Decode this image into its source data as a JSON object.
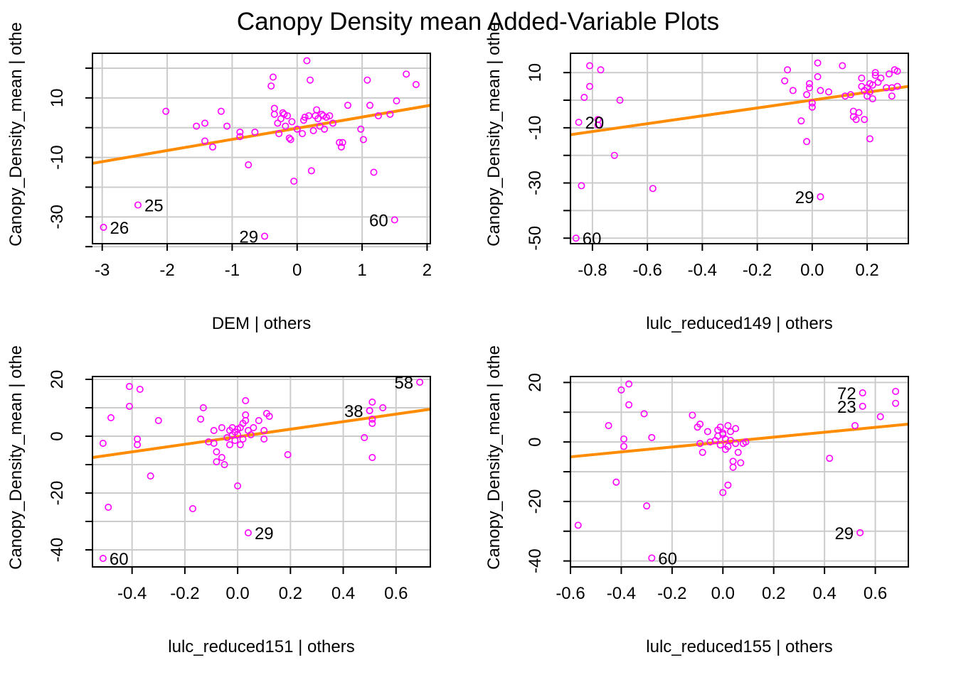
{
  "title": "Canopy Density mean Added-Variable Plots",
  "colors": {
    "points": "#ff00ff",
    "fit_line": "#ff8c00",
    "grid": "#cccccc",
    "axis": "#000000",
    "background": "#ffffff"
  },
  "chart_data": [
    {
      "type": "scatter",
      "xlabel": "DEM | others",
      "ylabel": "Canopy_Density_mean  | othe",
      "xticks": [
        -3,
        -2,
        -1,
        0,
        1,
        2
      ],
      "yticks": [
        -30,
        -10,
        10
      ],
      "yminor": [
        -40,
        -20,
        0,
        20
      ],
      "xlim": [
        -3.15,
        2.05
      ],
      "ylim": [
        -39,
        25
      ],
      "grid": true,
      "fit_line": [
        [
          -3.15,
          -12
        ],
        [
          2.05,
          7.5
        ]
      ],
      "labeled_points": [
        {
          "label": "25",
          "x": -2.45,
          "y": -26
        },
        {
          "label": "26",
          "x": -2.98,
          "y": -33.5
        },
        {
          "label": "29",
          "x": -0.5,
          "y": -36.5
        },
        {
          "label": "60",
          "x": 1.5,
          "y": -31
        }
      ],
      "points": [
        [
          -2.02,
          5.5
        ],
        [
          -1.55,
          0.5
        ],
        [
          -1.42,
          1.5
        ],
        [
          -1.42,
          -4.5
        ],
        [
          -1.3,
          -6.5
        ],
        [
          -1.17,
          5.5
        ],
        [
          -1.08,
          0.5
        ],
        [
          -0.88,
          -1.5
        ],
        [
          -0.88,
          -3
        ],
        [
          -0.75,
          -12.5
        ],
        [
          -0.65,
          -1.5
        ],
        [
          -0.4,
          14
        ],
        [
          -0.37,
          17
        ],
        [
          -0.35,
          6.5
        ],
        [
          -0.35,
          4.5
        ],
        [
          -0.3,
          1.5
        ],
        [
          -0.28,
          -2
        ],
        [
          -0.25,
          3
        ],
        [
          -0.22,
          5
        ],
        [
          -0.2,
          4.5
        ],
        [
          -0.18,
          0.5
        ],
        [
          -0.15,
          4
        ],
        [
          -0.12,
          -3.5
        ],
        [
          -0.1,
          -4
        ],
        [
          -0.08,
          2
        ],
        [
          -0.05,
          -18
        ],
        [
          0,
          -0.5
        ],
        [
          0.08,
          -2
        ],
        [
          0.1,
          2.5
        ],
        [
          0.12,
          3.5
        ],
        [
          0.15,
          22.5
        ],
        [
          0.18,
          4
        ],
        [
          0.2,
          16
        ],
        [
          0.22,
          -14.5
        ],
        [
          0.25,
          -1
        ],
        [
          0.28,
          4
        ],
        [
          0.3,
          6
        ],
        [
          0.32,
          3
        ],
        [
          0.35,
          0.5
        ],
        [
          0.38,
          4.5
        ],
        [
          0.4,
          4
        ],
        [
          0.42,
          -0.5
        ],
        [
          0.45,
          3.5
        ],
        [
          0.5,
          4
        ],
        [
          0.55,
          1.5
        ],
        [
          0.65,
          -5
        ],
        [
          0.68,
          -6.5
        ],
        [
          0.7,
          -5
        ],
        [
          0.78,
          7.5
        ],
        [
          0.98,
          -0.5
        ],
        [
          1.02,
          -4
        ],
        [
          1.08,
          16
        ],
        [
          1.12,
          7.5
        ],
        [
          1.18,
          -15
        ],
        [
          1.25,
          4
        ],
        [
          1.43,
          4.5
        ],
        [
          1.53,
          9
        ],
        [
          1.68,
          18
        ],
        [
          1.83,
          14.5
        ]
      ]
    },
    {
      "type": "scatter",
      "xlabel": "lulc_reduced149 | others",
      "ylabel": "Canopy_Density_mean  | othe",
      "xticks": [
        -0.8,
        -0.6,
        -0.4,
        -0.2,
        0.0,
        0.2
      ],
      "yticks": [
        -50,
        -30,
        -10,
        10
      ],
      "yminor": [
        -40,
        -20,
        0
      ],
      "xlim": [
        -0.88,
        0.35
      ],
      "ylim": [
        -52,
        17
      ],
      "grid": true,
      "fit_line": [
        [
          -0.88,
          -12.5
        ],
        [
          0.35,
          5
        ]
      ],
      "labeled_points": [
        {
          "label": "20",
          "x": -0.85,
          "y": -8
        },
        {
          "label": "29",
          "x": 0.03,
          "y": -35
        },
        {
          "label": "60",
          "x": -0.86,
          "y": -50
        }
      ],
      "points": [
        [
          -0.84,
          -31
        ],
        [
          -0.83,
          1
        ],
        [
          -0.81,
          12.5
        ],
        [
          -0.81,
          5
        ],
        [
          -0.78,
          -7
        ],
        [
          -0.78,
          -9
        ],
        [
          -0.77,
          11
        ],
        [
          -0.72,
          -20
        ],
        [
          -0.7,
          0
        ],
        [
          -0.58,
          -32
        ],
        [
          -0.1,
          7
        ],
        [
          -0.09,
          11
        ],
        [
          -0.07,
          3.5
        ],
        [
          -0.04,
          -7.5
        ],
        [
          -0.02,
          2
        ],
        [
          -0.02,
          -15
        ],
        [
          -0.01,
          4.5
        ],
        [
          -0.01,
          6
        ],
        [
          0.0,
          -1
        ],
        [
          0.0,
          -2.5
        ],
        [
          0.02,
          8.5
        ],
        [
          0.02,
          13.5
        ],
        [
          0.03,
          3.5
        ],
        [
          0.06,
          3
        ],
        [
          0.11,
          12.5
        ],
        [
          0.12,
          1.5
        ],
        [
          0.14,
          2
        ],
        [
          0.15,
          -4
        ],
        [
          0.15,
          -6
        ],
        [
          0.16,
          -7
        ],
        [
          0.17,
          -4.5
        ],
        [
          0.18,
          8
        ],
        [
          0.18,
          5
        ],
        [
          0.19,
          -7
        ],
        [
          0.19,
          3.5
        ],
        [
          0.2,
          1.5
        ],
        [
          0.2,
          4.5
        ],
        [
          0.21,
          6
        ],
        [
          0.21,
          -14
        ],
        [
          0.21,
          3
        ],
        [
          0.22,
          0.5
        ],
        [
          0.22,
          5.5
        ],
        [
          0.23,
          9
        ],
        [
          0.23,
          10
        ],
        [
          0.24,
          6.5
        ],
        [
          0.25,
          8
        ],
        [
          0.27,
          4.5
        ],
        [
          0.28,
          9.5
        ],
        [
          0.29,
          4.5
        ],
        [
          0.29,
          1.5
        ],
        [
          0.3,
          11
        ],
        [
          0.31,
          5
        ],
        [
          0.31,
          10.5
        ]
      ]
    },
    {
      "type": "scatter",
      "xlabel": "lulc_reduced151 | others",
      "ylabel": "Canopy_Density_mean  | othe",
      "xticks": [
        -0.4,
        -0.2,
        0.0,
        0.2,
        0.4,
        0.6
      ],
      "yticks": [
        -40,
        -20,
        0,
        20
      ],
      "yminor": [
        -30,
        -10,
        10
      ],
      "xlim": [
        -0.55,
        0.73
      ],
      "ylim": [
        -46,
        21
      ],
      "grid": true,
      "fit_line": [
        [
          -0.55,
          -7.5
        ],
        [
          0.73,
          9.5
        ]
      ],
      "labeled_points": [
        {
          "label": "29",
          "x": 0.04,
          "y": -34
        },
        {
          "label": "38",
          "x": 0.5,
          "y": 9
        },
        {
          "label": "58",
          "x": 0.69,
          "y": 19
        },
        {
          "label": "60",
          "x": -0.51,
          "y": -43
        }
      ],
      "points": [
        [
          -0.51,
          -2.5
        ],
        [
          -0.49,
          -25
        ],
        [
          -0.48,
          6.5
        ],
        [
          -0.41,
          10.5
        ],
        [
          -0.41,
          17.5
        ],
        [
          -0.38,
          -1
        ],
        [
          -0.38,
          -3
        ],
        [
          -0.37,
          16.5
        ],
        [
          -0.33,
          -14
        ],
        [
          -0.3,
          5.5
        ],
        [
          -0.17,
          -25.5
        ],
        [
          -0.14,
          6
        ],
        [
          -0.13,
          10
        ],
        [
          -0.11,
          -2
        ],
        [
          -0.09,
          -2.5
        ],
        [
          -0.09,
          2
        ],
        [
          -0.08,
          -9
        ],
        [
          -0.08,
          -5.5
        ],
        [
          -0.06,
          -7.5
        ],
        [
          -0.06,
          3
        ],
        [
          -0.05,
          -10
        ],
        [
          -0.04,
          -0.5
        ],
        [
          -0.03,
          2
        ],
        [
          -0.03,
          -3
        ],
        [
          -0.02,
          0.5
        ],
        [
          -0.02,
          3
        ],
        [
          -0.01,
          1.5
        ],
        [
          -0.01,
          -1.5
        ],
        [
          0.0,
          2.5
        ],
        [
          0.0,
          0.5
        ],
        [
          0.0,
          -17.5
        ],
        [
          0.01,
          -3
        ],
        [
          0.01,
          3
        ],
        [
          0.02,
          4.5
        ],
        [
          0.02,
          -1
        ],
        [
          0.03,
          5.5
        ],
        [
          0.03,
          7.5
        ],
        [
          0.03,
          12.5
        ],
        [
          0.04,
          2
        ],
        [
          0.05,
          0.5
        ],
        [
          0.06,
          3
        ],
        [
          0.08,
          5.5
        ],
        [
          0.1,
          -1
        ],
        [
          0.1,
          2
        ],
        [
          0.11,
          8
        ],
        [
          0.12,
          7
        ],
        [
          0.19,
          -6.5
        ],
        [
          0.48,
          -0.5
        ],
        [
          0.5,
          9
        ],
        [
          0.51,
          12
        ],
        [
          0.51,
          4.5
        ],
        [
          0.51,
          6
        ],
        [
          0.51,
          -7.5
        ],
        [
          0.55,
          10
        ]
      ]
    },
    {
      "type": "scatter",
      "xlabel": "lulc_reduced155 | others",
      "ylabel": "Canopy_Density_mean  | othe",
      "xticks": [
        -0.6,
        -0.4,
        -0.2,
        0.0,
        0.2,
        0.4,
        0.6
      ],
      "yticks": [
        -40,
        -20,
        0,
        20
      ],
      "yminor": [
        -30,
        -10,
        10
      ],
      "xlim": [
        -0.6,
        0.73
      ],
      "ylim": [
        -42,
        22
      ],
      "grid": true,
      "fit_line": [
        [
          -0.6,
          -5
        ],
        [
          0.73,
          6
        ]
      ],
      "labeled_points": [
        {
          "label": "23",
          "x": 0.55,
          "y": 12
        },
        {
          "label": "29",
          "x": 0.54,
          "y": -30.5
        },
        {
          "label": "60",
          "x": -0.28,
          "y": -39
        },
        {
          "label": "72",
          "x": 0.55,
          "y": 16.5
        }
      ],
      "points": [
        [
          -0.57,
          -28
        ],
        [
          -0.45,
          5.5
        ],
        [
          -0.42,
          -13.5
        ],
        [
          -0.4,
          17.5
        ],
        [
          -0.39,
          1
        ],
        [
          -0.39,
          -1.5
        ],
        [
          -0.37,
          19.5
        ],
        [
          -0.37,
          12.5
        ],
        [
          -0.31,
          9.5
        ],
        [
          -0.3,
          -21.5
        ],
        [
          -0.28,
          1.5
        ],
        [
          -0.12,
          9
        ],
        [
          -0.1,
          5
        ],
        [
          -0.09,
          6
        ],
        [
          -0.09,
          -0.5
        ],
        [
          -0.08,
          -3.5
        ],
        [
          -0.06,
          3.5
        ],
        [
          -0.05,
          0
        ],
        [
          -0.03,
          0.5
        ],
        [
          -0.02,
          2
        ],
        [
          -0.02,
          4
        ],
        [
          -0.01,
          -1
        ],
        [
          -0.01,
          5
        ],
        [
          0.0,
          3
        ],
        [
          0.0,
          -17
        ],
        [
          0.0,
          2.5
        ],
        [
          0.01,
          -2.5
        ],
        [
          0.01,
          1
        ],
        [
          0.02,
          -1.5
        ],
        [
          0.02,
          5.5
        ],
        [
          0.02,
          -14.5
        ],
        [
          0.03,
          3.5
        ],
        [
          0.03,
          0.5
        ],
        [
          0.04,
          -6.5
        ],
        [
          0.04,
          -8.5
        ],
        [
          0.05,
          4.5
        ],
        [
          0.05,
          -0.5
        ],
        [
          0.06,
          -3.5
        ],
        [
          0.07,
          -7
        ],
        [
          0.08,
          -0.5
        ],
        [
          0.09,
          0
        ],
        [
          0.42,
          -5.5
        ],
        [
          0.52,
          5.5
        ],
        [
          0.62,
          8.5
        ],
        [
          0.68,
          17
        ],
        [
          0.68,
          13
        ]
      ]
    }
  ]
}
